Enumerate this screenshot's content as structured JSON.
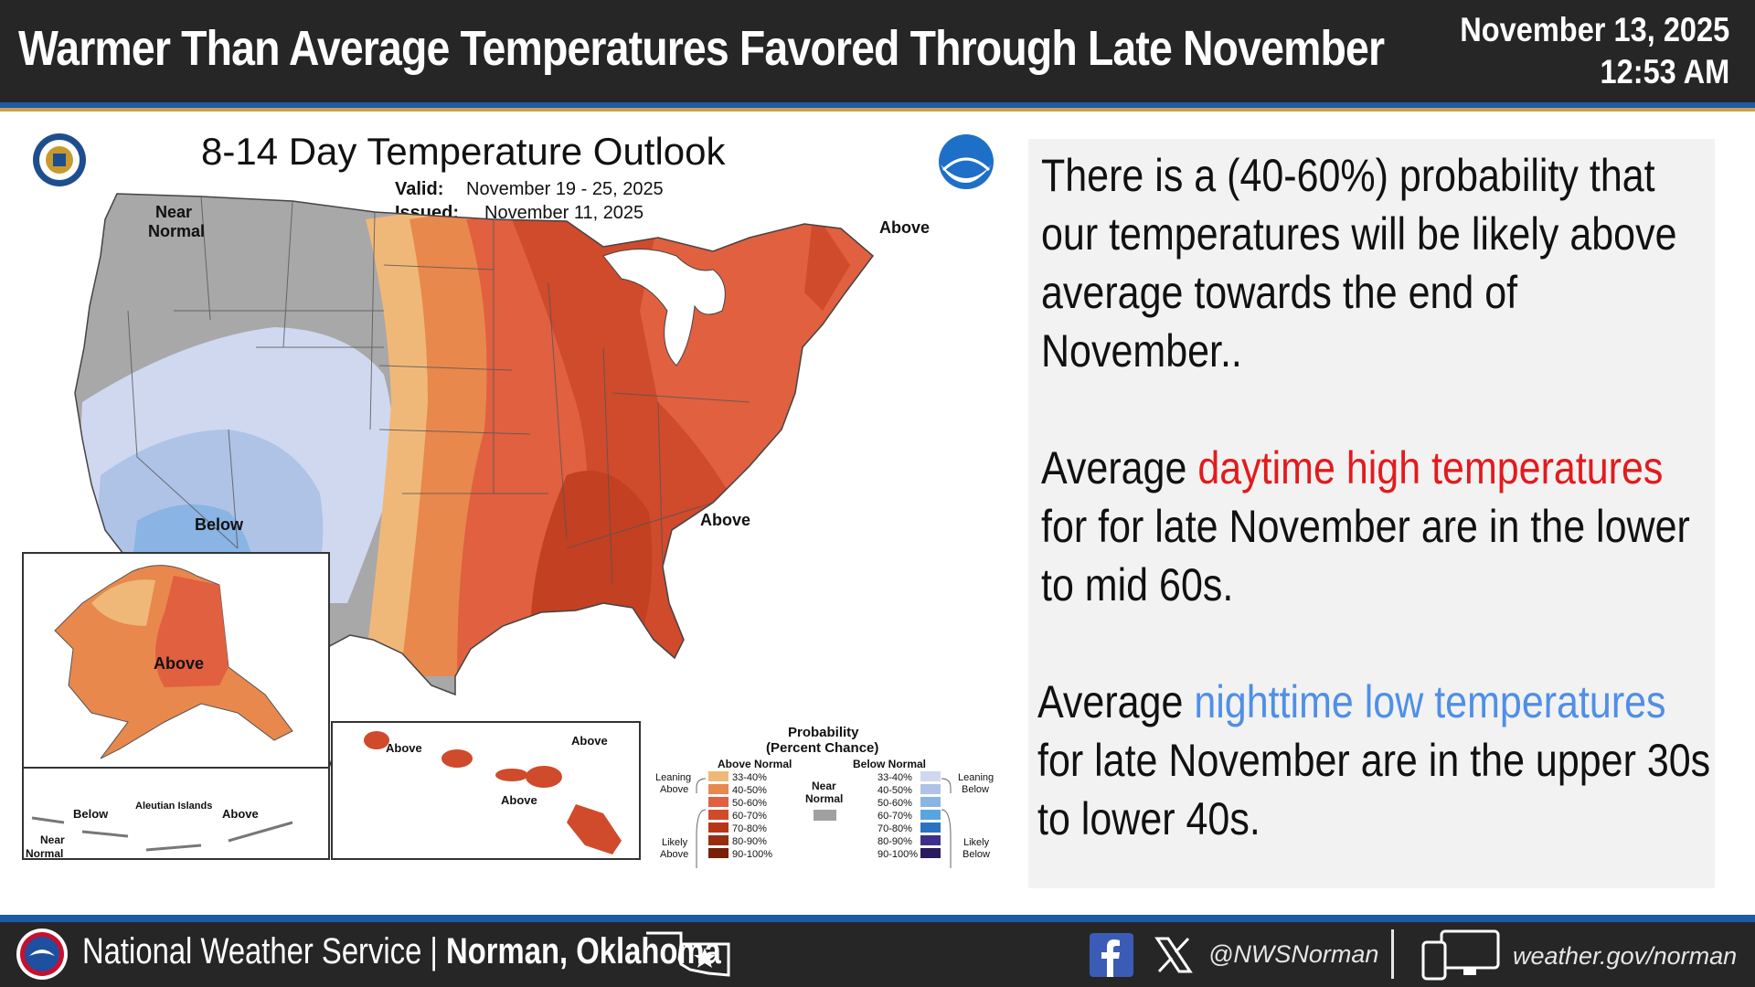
{
  "header": {
    "title": "Warmer Than Average Temperatures Favored Through Late November",
    "date": "November 13, 2025",
    "time": "12:53 AM"
  },
  "map": {
    "title": "8-14 Day Temperature Outlook",
    "valid_label": "Valid:",
    "valid_value": "November 19 - 25, 2025",
    "issued_label": "Issued:",
    "issued_value": "November 11, 2025",
    "region_labels": {
      "near_normal": [
        "Near",
        "Normal"
      ],
      "above_northeast": "Above",
      "below_southwest": "Below",
      "above_southeast": "Above",
      "alaska_above": "Above",
      "aleutian_below": "Below",
      "aleutian_title": "Aleutian Islands",
      "aleutian_above": "Above",
      "aleutian_near_normal": [
        "Near",
        "Normal"
      ],
      "hawaii_above_1": "Above",
      "hawaii_above_2": "Above",
      "hawaii_above_3": "Above"
    },
    "legend": {
      "title_1": "Probability",
      "title_2": "(Percent Chance)",
      "above_header": "Above Normal",
      "below_header": "Below Normal",
      "leaning_above": [
        "Leaning",
        "Above"
      ],
      "likely_above": [
        "Likely",
        "Above"
      ],
      "leaning_below": [
        "Leaning",
        "Below"
      ],
      "likely_below": [
        "Likely",
        "Below"
      ],
      "near_normal": [
        "Near",
        "Normal"
      ],
      "ranges": [
        "33-40%",
        "40-50%",
        "50-60%",
        "60-70%",
        "70-80%",
        "80-90%",
        "90-100%"
      ],
      "above_colors": [
        "#f0b878",
        "#e8884c",
        "#e06040",
        "#d04a2c",
        "#b83618",
        "#982c10",
        "#7a1e08"
      ],
      "below_colors": [
        "#cfd8ef",
        "#aec3e6",
        "#89b4e3",
        "#5aa4e0",
        "#2b73c2",
        "#3e2f8c",
        "#2a1a60"
      ],
      "near_color": "#a0a0a0"
    }
  },
  "panel": {
    "p1": "There is a (40-60%) probability that our temperatures will be likely above average towards the end of November..",
    "p2_pre": "Average ",
    "p2_highlight": "daytime high temperatures",
    "p2_post": " for for late November are in the lower to mid 60s.",
    "p3_pre": "Average ",
    "p3_highlight": "nighttime low temperatures",
    "p3_post": " for late November are in the upper 30s to lower 40s."
  },
  "footer": {
    "org_prefix": "National Weather Service | ",
    "org_location": "Norman, Oklahoma",
    "handle": "@NWSNorman",
    "url": "weather.gov/norman"
  },
  "icons": [
    "nws-logo-icon",
    "oklahoma-star-icon",
    "facebook-icon",
    "x-icon",
    "computer-phone-icon",
    "doc-seal-icon",
    "noaa-logo-icon"
  ],
  "colors": {
    "header_bg": "#262626",
    "accent_blue": "#1d5aa8",
    "highlight_red": "#e31a1c",
    "highlight_blue": "#4f8fe6"
  }
}
